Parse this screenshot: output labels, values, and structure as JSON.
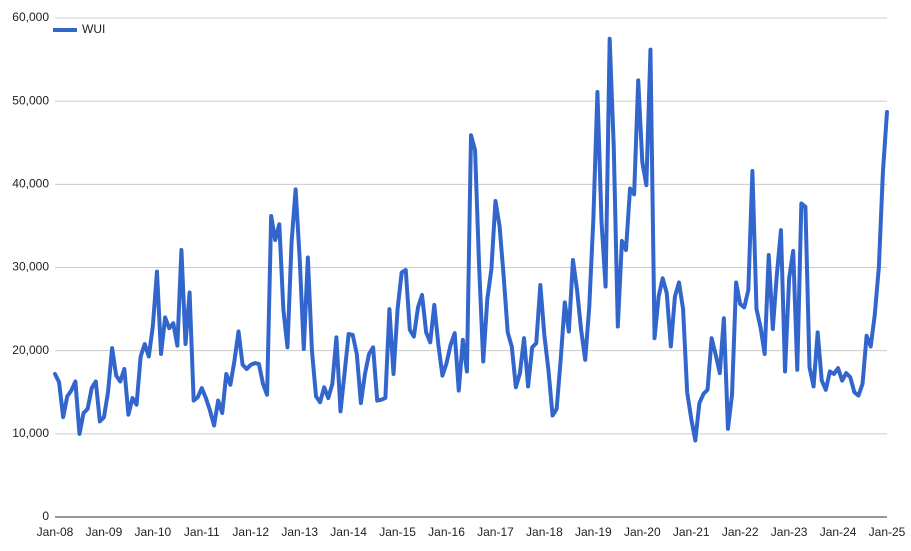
{
  "chart_data": {
    "type": "line",
    "categories": [
      "Jan-08",
      null,
      null,
      null,
      null,
      null,
      null,
      null,
      null,
      null,
      null,
      null,
      "Jan-09",
      null,
      null,
      null,
      null,
      null,
      null,
      null,
      null,
      null,
      null,
      null,
      "Jan-10",
      null,
      null,
      null,
      null,
      null,
      null,
      null,
      null,
      null,
      null,
      null,
      "Jan-11",
      null,
      null,
      null,
      null,
      null,
      null,
      null,
      null,
      null,
      null,
      null,
      "Jan-12",
      null,
      null,
      null,
      null,
      null,
      null,
      null,
      null,
      null,
      null,
      null,
      "Jan-13",
      null,
      null,
      null,
      null,
      null,
      null,
      null,
      null,
      null,
      null,
      null,
      "Jan-14",
      null,
      null,
      null,
      null,
      null,
      null,
      null,
      null,
      null,
      null,
      null,
      "Jan-15",
      null,
      null,
      null,
      null,
      null,
      null,
      null,
      null,
      null,
      null,
      null,
      "Jan-16",
      null,
      null,
      null,
      null,
      null,
      null,
      null,
      null,
      null,
      null,
      null,
      "Jan-17",
      null,
      null,
      null,
      null,
      null,
      null,
      null,
      null,
      null,
      null,
      null,
      "Jan-18",
      null,
      null,
      null,
      null,
      null,
      null,
      null,
      null,
      null,
      null,
      null,
      "Jan-19",
      null,
      null,
      null,
      null,
      null,
      null,
      null,
      null,
      null,
      null,
      null,
      "Jan-20",
      null,
      null,
      null,
      null,
      null,
      null,
      null,
      null,
      null,
      null,
      null,
      "Jan-21",
      null,
      null,
      null,
      null,
      null,
      null,
      null,
      null,
      null,
      null,
      null,
      "Jan-22",
      null,
      null,
      null,
      null,
      null,
      null,
      null,
      null,
      null,
      null,
      null,
      "Jan-23",
      null,
      null,
      null,
      null,
      null,
      null,
      null,
      null,
      null,
      null,
      null,
      "Jan-24",
      null,
      null,
      null,
      null,
      null,
      null,
      null,
      null,
      null,
      null,
      null,
      "Jan-25"
    ],
    "series": [
      {
        "name": "WUI",
        "color": "#3366cc",
        "values": [
          17200,
          16200,
          12000,
          14500,
          15200,
          16300,
          10000,
          12500,
          13000,
          15500,
          16300,
          11500,
          12000,
          15000,
          20300,
          17000,
          16300,
          17800,
          12300,
          14300,
          13500,
          19300,
          20800,
          19300,
          23000,
          29500,
          19600,
          24000,
          22700,
          23300,
          20600,
          32100,
          20800,
          27000,
          14000,
          14400,
          15500,
          14300,
          12800,
          11000,
          14000,
          12500,
          17200,
          15900,
          18800,
          22300,
          18300,
          17800,
          18300,
          18500,
          18400,
          16000,
          14700,
          36200,
          33300,
          35200,
          24900,
          20400,
          33000,
          39400,
          31000,
          20200,
          31200,
          20000,
          14500,
          13800,
          15600,
          14300,
          16000,
          21600,
          12700,
          17300,
          22000,
          21900,
          19600,
          13700,
          17200,
          19600,
          20400,
          14000,
          14100,
          14300,
          25000,
          17200,
          25000,
          29400,
          29700,
          22500,
          21700,
          25200,
          26700,
          22200,
          21000,
          25500,
          20700,
          17000,
          18500,
          20700,
          22100,
          15200,
          21300,
          17500,
          45900,
          44100,
          30000,
          18700,
          26200,
          29800,
          38000,
          35000,
          29000,
          22200,
          20500,
          15600,
          17300,
          21500,
          15700,
          20400,
          20900,
          27900,
          21800,
          17600,
          12200,
          13000,
          19000,
          25800,
          22300,
          30900,
          27300,
          22500,
          18900,
          25300,
          35800,
          51100,
          35500,
          27700,
          57500,
          44500,
          22900,
          33200,
          32100,
          39500,
          38800,
          52500,
          42700,
          39900,
          56200,
          21500,
          26500,
          28700,
          26900,
          20500,
          26500,
          28200,
          25000,
          15000,
          11800,
          9200,
          13700,
          14800,
          15300,
          21500,
          19500,
          17300,
          23900,
          10600,
          14700,
          28200,
          25600,
          25200,
          27300,
          41600,
          25000,
          22800,
          19600,
          31500,
          22600,
          29200,
          34500,
          17500,
          28700,
          32000,
          17700,
          37700,
          37300,
          18000,
          15700,
          22200,
          16400,
          15300,
          17500,
          17200,
          17900,
          16400,
          17300,
          16800,
          15000,
          14600,
          16000,
          21800,
          20500,
          24300,
          30000,
          41500,
          48700
        ]
      }
    ],
    "ylim": [
      0,
      60000
    ],
    "yticks": [
      0,
      {
        "value": 10000,
        "label": "10,000"
      },
      {
        "value": 20000,
        "label": "20,000"
      },
      {
        "value": 30000,
        "label": "30,000"
      },
      {
        "value": 40000,
        "label": "40,000"
      },
      {
        "value": 50000,
        "label": "50,000"
      },
      {
        "value": 60000,
        "label": "60,000"
      }
    ],
    "grid": true,
    "legend": "top-left"
  }
}
